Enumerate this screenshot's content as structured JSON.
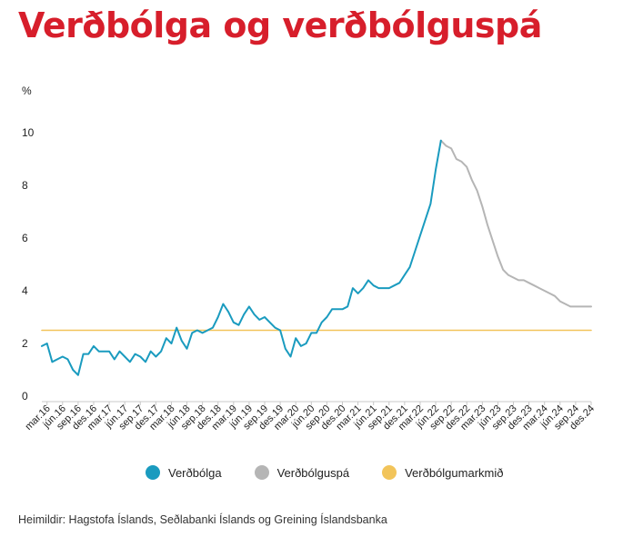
{
  "title": "Verðbólga og verðbólguspá",
  "source": "Heimildir: Hagstofa Íslands, Seðlabanki Íslands og Greining Íslandsbanka",
  "colors": {
    "title": "#d71e2b",
    "inflation": "#1a9bbf",
    "forecast": "#b5b5b5",
    "target": "#f2c45a",
    "axis": "#c8c8c8"
  },
  "chart_data": {
    "type": "line",
    "ylabel": "%",
    "ylim": [
      0,
      10
    ],
    "yticks": [
      "0",
      "2",
      "4",
      "6",
      "8",
      "10"
    ],
    "x_tick_labels": [
      "mar.16",
      "jún.16",
      "sep.16",
      "des.16",
      "mar.17",
      "jún.17",
      "sep.17",
      "des.17",
      "mar.18",
      "jún.18",
      "sep.18",
      "des.18",
      "mar.19",
      "jún.19",
      "sep.19",
      "des.19",
      "mar.20",
      "jún.20",
      "sep.20",
      "des.20",
      "mar.21",
      "jún.21",
      "sep.21",
      "des.21",
      "mar.22",
      "jún.22",
      "sep.22",
      "des.22",
      "mar.23",
      "jún.23",
      "sep.23",
      "des.23",
      "mar.24",
      "jún.24",
      "sep.24",
      "des.24"
    ],
    "legend": [
      "Verðbólga",
      "Verðbólguspá",
      "Verðbólgumarkmið"
    ],
    "series": [
      {
        "name": "Verðbólga",
        "color": "#1a9bbf",
        "x": [
          "2016-02",
          "2016-03",
          "2016-04",
          "2016-05",
          "2016-06",
          "2016-07",
          "2016-08",
          "2016-09",
          "2016-10",
          "2016-11",
          "2016-12",
          "2017-01",
          "2017-02",
          "2017-03",
          "2017-04",
          "2017-05",
          "2017-06",
          "2017-07",
          "2017-08",
          "2017-09",
          "2017-10",
          "2017-11",
          "2017-12",
          "2018-01",
          "2018-02",
          "2018-03",
          "2018-04",
          "2018-05",
          "2018-06",
          "2018-07",
          "2018-08",
          "2018-09",
          "2018-10",
          "2018-11",
          "2018-12",
          "2019-01",
          "2019-02",
          "2019-03",
          "2019-04",
          "2019-05",
          "2019-06",
          "2019-07",
          "2019-08",
          "2019-09",
          "2019-10",
          "2019-11",
          "2019-12",
          "2020-01",
          "2020-02",
          "2020-03",
          "2020-04",
          "2020-05",
          "2020-06",
          "2020-07",
          "2020-08",
          "2020-09",
          "2020-10",
          "2020-11",
          "2020-12",
          "2021-01",
          "2021-02",
          "2021-03",
          "2021-04",
          "2021-05",
          "2021-06",
          "2021-07",
          "2021-08",
          "2021-09",
          "2021-10",
          "2021-11",
          "2021-12",
          "2022-01",
          "2022-02",
          "2022-03",
          "2022-04",
          "2022-05",
          "2022-06",
          "2022-07"
        ],
        "values": [
          1.9,
          2.0,
          1.3,
          1.4,
          1.5,
          1.4,
          1.0,
          0.8,
          1.6,
          1.6,
          1.9,
          1.7,
          1.7,
          1.7,
          1.4,
          1.7,
          1.5,
          1.3,
          1.6,
          1.5,
          1.3,
          1.7,
          1.5,
          1.7,
          2.2,
          2.0,
          2.6,
          2.1,
          1.8,
          2.4,
          2.5,
          2.4,
          2.5,
          2.6,
          3.0,
          3.5,
          3.2,
          2.8,
          2.7,
          3.1,
          3.4,
          3.1,
          2.9,
          3.0,
          2.8,
          2.6,
          2.5,
          1.8,
          1.5,
          2.2,
          1.9,
          2.0,
          2.4,
          2.4,
          2.8,
          3.0,
          3.3,
          3.3,
          3.3,
          3.4,
          4.1,
          3.9,
          4.1,
          4.4,
          4.2,
          4.1,
          4.1,
          4.1,
          4.2,
          4.3,
          4.6,
          4.9,
          5.5,
          6.1,
          6.7,
          7.3,
          8.6,
          9.7
        ]
      },
      {
        "name": "Verðbólguspá",
        "color": "#b5b5b5",
        "x": [
          "2022-07",
          "2022-08",
          "2022-09",
          "2022-10",
          "2022-11",
          "2022-12",
          "2023-01",
          "2023-02",
          "2023-03",
          "2023-04",
          "2023-05",
          "2023-06",
          "2023-07",
          "2023-08",
          "2023-09",
          "2023-10",
          "2023-11",
          "2023-12",
          "2024-01",
          "2024-02",
          "2024-03",
          "2024-04",
          "2024-05",
          "2024-06",
          "2024-07",
          "2024-08",
          "2024-09",
          "2024-10",
          "2024-11",
          "2024-12"
        ],
        "values": [
          9.7,
          9.5,
          9.4,
          9.0,
          8.9,
          8.7,
          8.2,
          7.8,
          7.2,
          6.5,
          5.9,
          5.3,
          4.8,
          4.6,
          4.5,
          4.4,
          4.4,
          4.3,
          4.2,
          4.1,
          4.0,
          3.9,
          3.8,
          3.6,
          3.5,
          3.4,
          3.4,
          3.4,
          3.4,
          3.4
        ]
      },
      {
        "name": "Verðbólgumarkmið",
        "color": "#f2c45a",
        "x": [
          "2016-02",
          "2024-12"
        ],
        "values": [
          2.5,
          2.5
        ]
      }
    ]
  }
}
